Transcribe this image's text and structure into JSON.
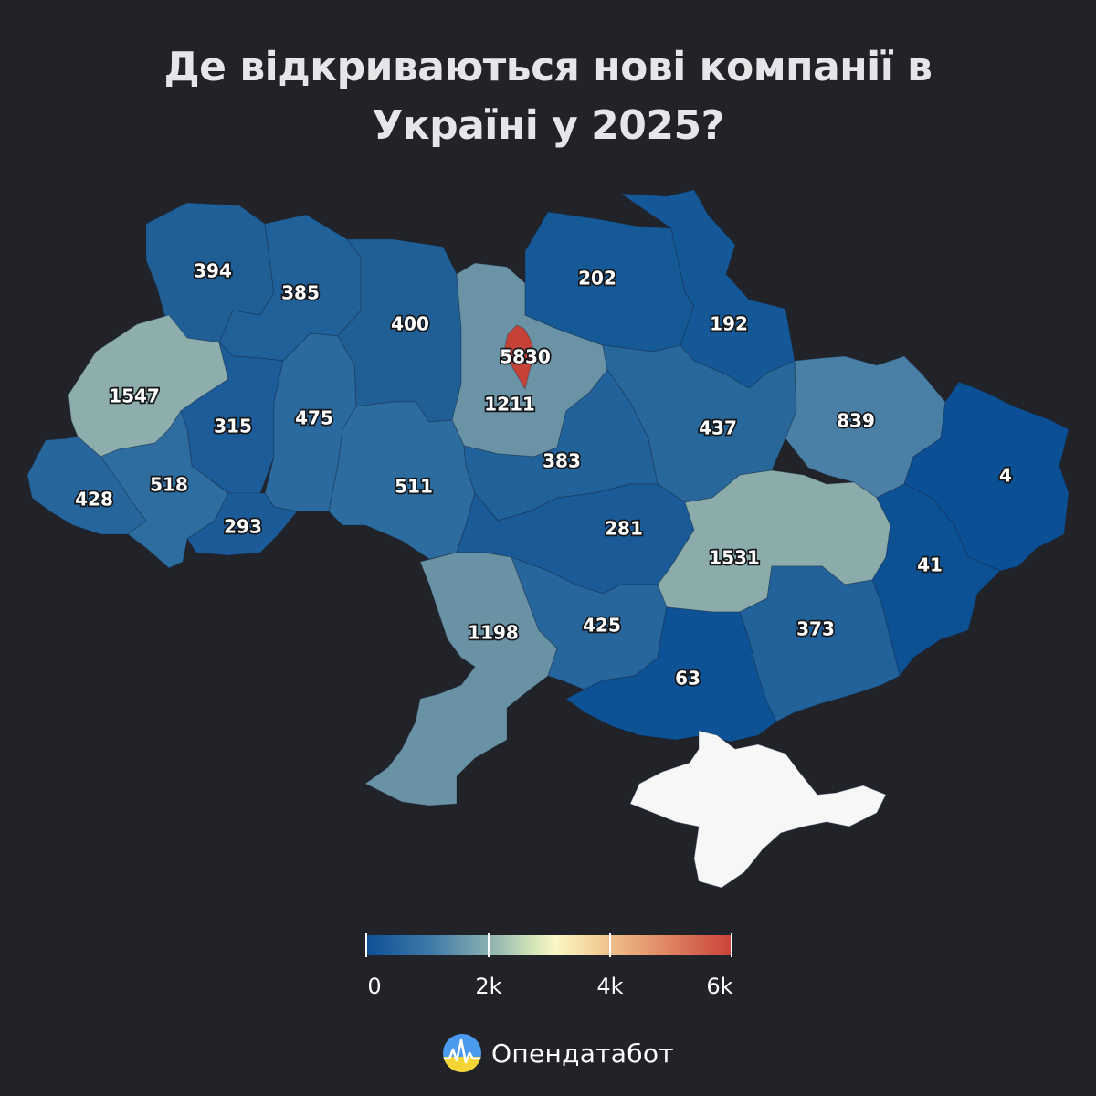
{
  "title": {
    "line1": "Де відкриваються нові компанії в",
    "line2": "Україні у 2025?"
  },
  "regions": [
    {
      "id": "volyn",
      "value": "394",
      "color": "#1f5f96"
    },
    {
      "id": "rivne",
      "value": "385",
      "color": "#21619a"
    },
    {
      "id": "zhytomyr",
      "value": "400",
      "color": "#1f5f96"
    },
    {
      "id": "kyiv-oblast",
      "value": "1211",
      "color": "#6a93a5"
    },
    {
      "id": "kyiv-city",
      "value": "5830",
      "color": "#c64236"
    },
    {
      "id": "chernihiv",
      "value": "202",
      "color": "#155996"
    },
    {
      "id": "sumy",
      "value": "192",
      "color": "#145897"
    },
    {
      "id": "lviv",
      "value": "1547",
      "color": "#8eaeae"
    },
    {
      "id": "ternopil",
      "value": "315",
      "color": "#1c5c98"
    },
    {
      "id": "khmelnytskyi",
      "value": "475",
      "color": "#2a6a9e"
    },
    {
      "id": "vinnytsia",
      "value": "511",
      "color": "#2c6c9f"
    },
    {
      "id": "cherkasy",
      "value": "383",
      "color": "#22629a"
    },
    {
      "id": "poltava",
      "value": "437",
      "color": "#276799"
    },
    {
      "id": "kharkiv",
      "value": "839",
      "color": "#4a7fa6"
    },
    {
      "id": "luhansk",
      "value": "4",
      "color": "#0b4f95"
    },
    {
      "id": "zakarpattia",
      "value": "428",
      "color": "#26669c"
    },
    {
      "id": "ivano-frankivsk",
      "value": "518",
      "color": "#2d6d9f"
    },
    {
      "id": "chernivtsi",
      "value": "293",
      "color": "#1b5b98"
    },
    {
      "id": "kirovohrad",
      "value": "281",
      "color": "#1a5a97"
    },
    {
      "id": "dnipropetrovsk",
      "value": "1531",
      "color": "#8cacac"
    },
    {
      "id": "donetsk",
      "value": "41",
      "color": "#0d5195"
    },
    {
      "id": "odesa",
      "value": "1198",
      "color": "#6a92a5"
    },
    {
      "id": "mykolaiv",
      "value": "425",
      "color": "#26669c"
    },
    {
      "id": "zaporizhzhia",
      "value": "373",
      "color": "#22629a"
    },
    {
      "id": "kherson",
      "value": "63",
      "color": "#0e5296"
    },
    {
      "id": "crimea",
      "value": "",
      "color": "#f7f7f7"
    }
  ],
  "legend": {
    "labels": [
      "0",
      "2k",
      "4k",
      "6k"
    ],
    "min": 0,
    "max": 6000
  },
  "brand": {
    "name": "Опендатабот"
  }
}
